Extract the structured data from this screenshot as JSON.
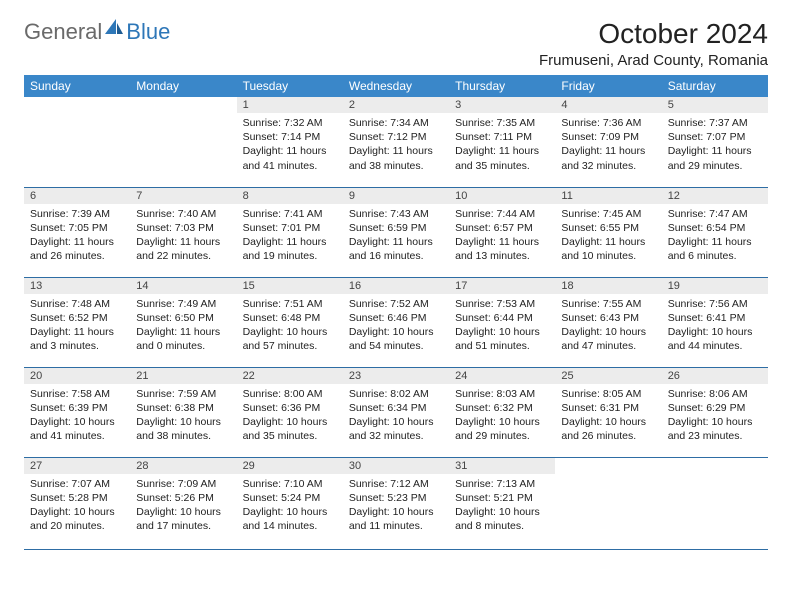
{
  "logo": {
    "text1": "General",
    "text2": "Blue"
  },
  "header": {
    "month_title": "October 2024",
    "location": "Frumuseni, Arad County, Romania"
  },
  "day_names": [
    "Sunday",
    "Monday",
    "Tuesday",
    "Wednesday",
    "Thursday",
    "Friday",
    "Saturday"
  ],
  "colors": {
    "header_bg": "#3a87c9",
    "header_text": "#ffffff",
    "daynum_bg": "#ececec",
    "border": "#2e6da4",
    "logo_gray": "#6a6a6a",
    "logo_blue": "#2e77b8"
  },
  "weeks": [
    [
      null,
      null,
      {
        "num": "1",
        "sunrise": "Sunrise: 7:32 AM",
        "sunset": "Sunset: 7:14 PM",
        "daylight": "Daylight: 11 hours and 41 minutes."
      },
      {
        "num": "2",
        "sunrise": "Sunrise: 7:34 AM",
        "sunset": "Sunset: 7:12 PM",
        "daylight": "Daylight: 11 hours and 38 minutes."
      },
      {
        "num": "3",
        "sunrise": "Sunrise: 7:35 AM",
        "sunset": "Sunset: 7:11 PM",
        "daylight": "Daylight: 11 hours and 35 minutes."
      },
      {
        "num": "4",
        "sunrise": "Sunrise: 7:36 AM",
        "sunset": "Sunset: 7:09 PM",
        "daylight": "Daylight: 11 hours and 32 minutes."
      },
      {
        "num": "5",
        "sunrise": "Sunrise: 7:37 AM",
        "sunset": "Sunset: 7:07 PM",
        "daylight": "Daylight: 11 hours and 29 minutes."
      }
    ],
    [
      {
        "num": "6",
        "sunrise": "Sunrise: 7:39 AM",
        "sunset": "Sunset: 7:05 PM",
        "daylight": "Daylight: 11 hours and 26 minutes."
      },
      {
        "num": "7",
        "sunrise": "Sunrise: 7:40 AM",
        "sunset": "Sunset: 7:03 PM",
        "daylight": "Daylight: 11 hours and 22 minutes."
      },
      {
        "num": "8",
        "sunrise": "Sunrise: 7:41 AM",
        "sunset": "Sunset: 7:01 PM",
        "daylight": "Daylight: 11 hours and 19 minutes."
      },
      {
        "num": "9",
        "sunrise": "Sunrise: 7:43 AM",
        "sunset": "Sunset: 6:59 PM",
        "daylight": "Daylight: 11 hours and 16 minutes."
      },
      {
        "num": "10",
        "sunrise": "Sunrise: 7:44 AM",
        "sunset": "Sunset: 6:57 PM",
        "daylight": "Daylight: 11 hours and 13 minutes."
      },
      {
        "num": "11",
        "sunrise": "Sunrise: 7:45 AM",
        "sunset": "Sunset: 6:55 PM",
        "daylight": "Daylight: 11 hours and 10 minutes."
      },
      {
        "num": "12",
        "sunrise": "Sunrise: 7:47 AM",
        "sunset": "Sunset: 6:54 PM",
        "daylight": "Daylight: 11 hours and 6 minutes."
      }
    ],
    [
      {
        "num": "13",
        "sunrise": "Sunrise: 7:48 AM",
        "sunset": "Sunset: 6:52 PM",
        "daylight": "Daylight: 11 hours and 3 minutes."
      },
      {
        "num": "14",
        "sunrise": "Sunrise: 7:49 AM",
        "sunset": "Sunset: 6:50 PM",
        "daylight": "Daylight: 11 hours and 0 minutes."
      },
      {
        "num": "15",
        "sunrise": "Sunrise: 7:51 AM",
        "sunset": "Sunset: 6:48 PM",
        "daylight": "Daylight: 10 hours and 57 minutes."
      },
      {
        "num": "16",
        "sunrise": "Sunrise: 7:52 AM",
        "sunset": "Sunset: 6:46 PM",
        "daylight": "Daylight: 10 hours and 54 minutes."
      },
      {
        "num": "17",
        "sunrise": "Sunrise: 7:53 AM",
        "sunset": "Sunset: 6:44 PM",
        "daylight": "Daylight: 10 hours and 51 minutes."
      },
      {
        "num": "18",
        "sunrise": "Sunrise: 7:55 AM",
        "sunset": "Sunset: 6:43 PM",
        "daylight": "Daylight: 10 hours and 47 minutes."
      },
      {
        "num": "19",
        "sunrise": "Sunrise: 7:56 AM",
        "sunset": "Sunset: 6:41 PM",
        "daylight": "Daylight: 10 hours and 44 minutes."
      }
    ],
    [
      {
        "num": "20",
        "sunrise": "Sunrise: 7:58 AM",
        "sunset": "Sunset: 6:39 PM",
        "daylight": "Daylight: 10 hours and 41 minutes."
      },
      {
        "num": "21",
        "sunrise": "Sunrise: 7:59 AM",
        "sunset": "Sunset: 6:38 PM",
        "daylight": "Daylight: 10 hours and 38 minutes."
      },
      {
        "num": "22",
        "sunrise": "Sunrise: 8:00 AM",
        "sunset": "Sunset: 6:36 PM",
        "daylight": "Daylight: 10 hours and 35 minutes."
      },
      {
        "num": "23",
        "sunrise": "Sunrise: 8:02 AM",
        "sunset": "Sunset: 6:34 PM",
        "daylight": "Daylight: 10 hours and 32 minutes."
      },
      {
        "num": "24",
        "sunrise": "Sunrise: 8:03 AM",
        "sunset": "Sunset: 6:32 PM",
        "daylight": "Daylight: 10 hours and 29 minutes."
      },
      {
        "num": "25",
        "sunrise": "Sunrise: 8:05 AM",
        "sunset": "Sunset: 6:31 PM",
        "daylight": "Daylight: 10 hours and 26 minutes."
      },
      {
        "num": "26",
        "sunrise": "Sunrise: 8:06 AM",
        "sunset": "Sunset: 6:29 PM",
        "daylight": "Daylight: 10 hours and 23 minutes."
      }
    ],
    [
      {
        "num": "27",
        "sunrise": "Sunrise: 7:07 AM",
        "sunset": "Sunset: 5:28 PM",
        "daylight": "Daylight: 10 hours and 20 minutes."
      },
      {
        "num": "28",
        "sunrise": "Sunrise: 7:09 AM",
        "sunset": "Sunset: 5:26 PM",
        "daylight": "Daylight: 10 hours and 17 minutes."
      },
      {
        "num": "29",
        "sunrise": "Sunrise: 7:10 AM",
        "sunset": "Sunset: 5:24 PM",
        "daylight": "Daylight: 10 hours and 14 minutes."
      },
      {
        "num": "30",
        "sunrise": "Sunrise: 7:12 AM",
        "sunset": "Sunset: 5:23 PM",
        "daylight": "Daylight: 10 hours and 11 minutes."
      },
      {
        "num": "31",
        "sunrise": "Sunrise: 7:13 AM",
        "sunset": "Sunset: 5:21 PM",
        "daylight": "Daylight: 10 hours and 8 minutes."
      },
      null,
      null
    ]
  ]
}
